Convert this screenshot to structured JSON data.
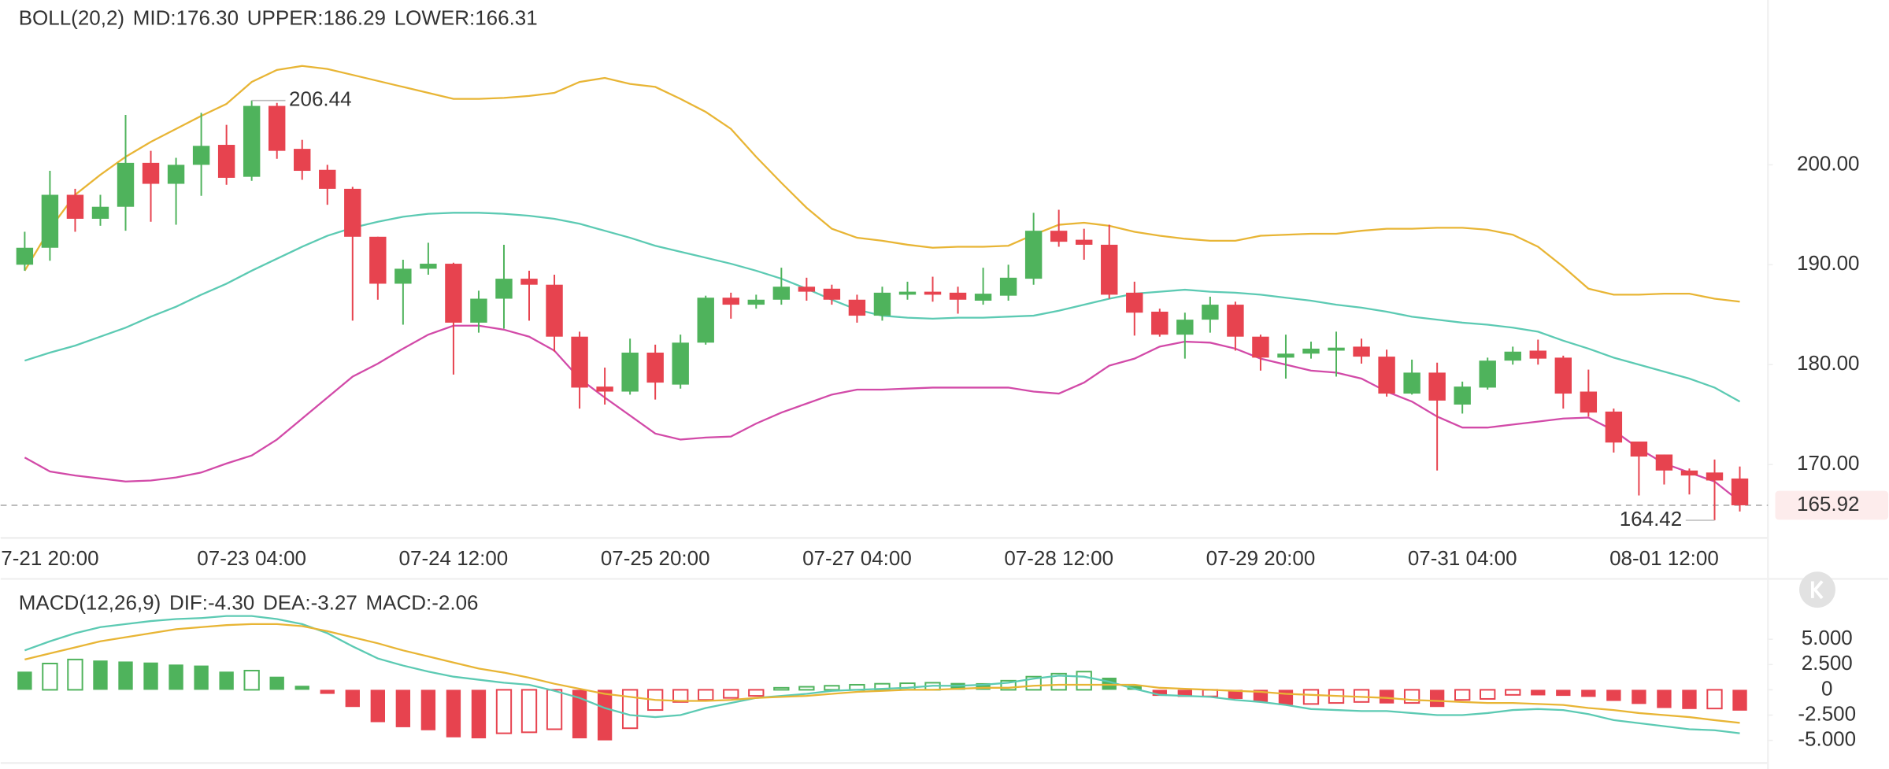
{
  "chart_data": [
    {
      "type": "candlestick",
      "legend_title": "BOLL(20,2)",
      "categories": [
        null,
        "7-21 20:00",
        null,
        null,
        null,
        null,
        null,
        null,
        null,
        "07-23 04:00",
        null,
        null,
        null,
        null,
        null,
        null,
        null,
        "07-24 12:00",
        null,
        null,
        null,
        null,
        null,
        null,
        null,
        "07-25 20:00",
        null,
        null,
        null,
        null,
        null,
        null,
        null,
        "07-27 04:00",
        null,
        null,
        null,
        null,
        null,
        null,
        null,
        "07-28 12:00",
        null,
        null,
        null,
        null,
        null,
        null,
        null,
        "07-29 20:00",
        null,
        null,
        null,
        null,
        null,
        null,
        null,
        "07-31 04:00",
        null,
        null,
        null,
        null,
        null,
        null,
        null,
        "08-01 12:00",
        null,
        null,
        null
      ],
      "open": [
        190.0,
        191.7,
        197.0,
        194.6,
        195.8,
        200.2,
        198.1,
        200.0,
        202.0,
        198.8,
        205.9,
        201.6,
        199.5,
        197.6,
        192.8,
        188.1,
        189.6,
        190.1,
        184.2,
        186.6,
        188.6,
        188.0,
        182.8,
        177.8,
        177.3,
        181.2,
        178.0,
        182.2,
        186.7,
        186.0,
        186.5,
        187.8,
        187.6,
        186.5,
        184.9,
        187.0,
        187.3,
        187.2,
        186.4,
        186.9,
        188.6,
        193.4,
        192.5,
        192.0,
        187.2,
        185.3,
        183.0,
        184.5,
        186.0,
        182.8,
        180.7,
        181.1,
        181.4,
        181.8,
        180.8,
        177.1,
        179.2,
        176.0,
        177.7,
        180.4,
        181.4,
        180.7,
        177.3,
        175.3,
        172.3,
        171.0,
        169.4,
        169.2,
        168.6
      ],
      "high": [
        193.3,
        199.4,
        197.6,
        197.0,
        205.0,
        201.4,
        200.7,
        205.2,
        204.0,
        206.44,
        206.2,
        202.5,
        200.0,
        197.8,
        192.8,
        190.5,
        192.2,
        190.2,
        187.4,
        192.0,
        189.4,
        189.0,
        183.3,
        179.7,
        182.6,
        182.0,
        183.0,
        186.9,
        187.2,
        187.0,
        189.7,
        188.7,
        188.0,
        187.0,
        187.8,
        188.3,
        188.8,
        187.8,
        189.7,
        190.0,
        195.2,
        195.5,
        193.6,
        194.0,
        188.3,
        185.6,
        185.2,
        186.8,
        186.3,
        183.0,
        183.0,
        182.3,
        183.3,
        182.6,
        181.5,
        180.5,
        180.2,
        178.3,
        180.7,
        181.8,
        182.5,
        180.9,
        179.5,
        175.6,
        172.3,
        171.0,
        169.6,
        170.5,
        169.8
      ],
      "low": [
        189.4,
        190.4,
        193.3,
        193.9,
        193.4,
        194.3,
        194.0,
        196.9,
        198.0,
        198.4,
        200.6,
        198.5,
        196.0,
        184.4,
        186.5,
        184.0,
        189.0,
        179.0,
        183.2,
        183.6,
        184.4,
        181.3,
        175.6,
        176.0,
        177.0,
        176.5,
        177.6,
        182.0,
        184.6,
        185.6,
        186.0,
        186.4,
        186.0,
        184.2,
        184.4,
        186.5,
        186.3,
        185.1,
        186.0,
        186.4,
        188.0,
        191.8,
        190.5,
        186.6,
        182.9,
        182.8,
        180.6,
        183.2,
        181.4,
        179.4,
        178.6,
        180.6,
        178.8,
        180.1,
        176.8,
        177.0,
        169.4,
        175.1,
        177.5,
        180.0,
        180.0,
        175.6,
        174.8,
        171.2,
        166.9,
        168.0,
        167.0,
        164.42,
        165.3
      ],
      "close": [
        191.7,
        197.0,
        194.6,
        195.8,
        200.2,
        198.1,
        200.0,
        201.9,
        198.7,
        205.9,
        201.4,
        199.4,
        197.6,
        192.8,
        188.1,
        189.6,
        190.1,
        184.2,
        186.6,
        188.6,
        188.0,
        182.8,
        177.7,
        177.3,
        181.2,
        178.2,
        182.2,
        186.7,
        186.0,
        186.5,
        187.8,
        187.3,
        186.5,
        184.9,
        187.2,
        187.3,
        187.0,
        186.5,
        187.1,
        188.7,
        193.4,
        192.3,
        192.0,
        187.0,
        185.2,
        183.0,
        184.5,
        186.0,
        182.8,
        180.7,
        181.1,
        181.6,
        181.7,
        180.8,
        177.1,
        179.2,
        176.4,
        177.8,
        180.4,
        181.3,
        180.6,
        177.1,
        175.2,
        172.2,
        170.8,
        169.4,
        168.9,
        168.4,
        165.92
      ],
      "up_color": "#4fb35c",
      "down_color": "#e7434f",
      "series": [
        {
          "name": "MID:176.30",
          "color": "#5ccab3",
          "values": [
            180.4,
            181.2,
            181.9,
            182.8,
            183.7,
            184.8,
            185.8,
            187.0,
            188.1,
            189.4,
            190.6,
            191.8,
            192.9,
            193.7,
            194.3,
            194.8,
            195.1,
            195.2,
            195.2,
            195.1,
            194.9,
            194.6,
            194.1,
            193.4,
            192.7,
            191.9,
            191.3,
            190.7,
            190.1,
            189.4,
            188.6,
            187.6,
            186.5,
            185.5,
            184.9,
            184.7,
            184.6,
            184.7,
            184.7,
            184.8,
            184.9,
            185.4,
            186.0,
            186.6,
            187.1,
            187.3,
            187.5,
            187.3,
            187.2,
            187.0,
            186.7,
            186.4,
            186.0,
            185.7,
            185.3,
            184.8,
            184.5,
            184.2,
            184.0,
            183.7,
            183.3,
            182.4,
            181.6,
            180.7,
            180.0,
            179.3,
            178.6,
            177.7,
            176.3
          ]
        },
        {
          "name": "UPPER:186.29",
          "color": "#e8b535",
          "values": [
            189.4,
            193.6,
            197.0,
            199.0,
            200.8,
            202.3,
            203.6,
            204.9,
            206.1,
            208.3,
            209.5,
            209.9,
            209.6,
            209.0,
            208.4,
            207.8,
            207.2,
            206.6,
            206.6,
            206.7,
            206.9,
            207.2,
            208.3,
            208.7,
            208.1,
            207.8,
            206.6,
            205.3,
            203.6,
            200.8,
            198.2,
            195.7,
            193.6,
            192.7,
            192.4,
            192.0,
            191.7,
            191.8,
            191.8,
            191.9,
            193.0,
            194.0,
            194.2,
            193.9,
            193.3,
            192.9,
            192.6,
            192.4,
            192.4,
            192.9,
            193.0,
            193.1,
            193.1,
            193.4,
            193.6,
            193.6,
            193.7,
            193.7,
            193.5,
            193.0,
            191.8,
            189.8,
            187.6,
            187.0,
            187.0,
            187.1,
            187.1,
            186.6,
            186.3
          ]
        },
        {
          "name": "LOWER:166.31",
          "color": "#d24aa8",
          "values": [
            170.7,
            169.3,
            168.9,
            168.6,
            168.3,
            168.4,
            168.7,
            169.2,
            170.1,
            170.9,
            172.5,
            174.6,
            176.7,
            178.8,
            180.1,
            181.6,
            183.0,
            183.9,
            183.9,
            183.5,
            182.8,
            181.4,
            178.6,
            176.7,
            174.9,
            173.1,
            172.5,
            172.7,
            172.8,
            174.1,
            175.2,
            176.1,
            177.0,
            177.5,
            177.5,
            177.6,
            177.7,
            177.7,
            177.7,
            177.7,
            177.3,
            177.1,
            178.2,
            179.9,
            180.6,
            181.8,
            182.3,
            182.2,
            181.6,
            180.6,
            180.0,
            179.4,
            179.2,
            178.6,
            177.3,
            176.3,
            174.8,
            173.7,
            173.7,
            174.0,
            174.3,
            174.6,
            174.7,
            173.4,
            171.6,
            170.1,
            169.2,
            168.3,
            166.3
          ]
        }
      ],
      "ylim": [
        162.65,
        216.5
      ],
      "yticks": [
        {
          "value": 170,
          "label": "170.00"
        },
        {
          "value": 180,
          "label": "180.00"
        },
        {
          "value": 190,
          "label": "190.00"
        },
        {
          "value": 200,
          "label": "200.00"
        }
      ],
      "last_price": 165.92,
      "high_label": 206.44,
      "low_label": 164.42
    },
    {
      "type": "macd",
      "legend_title": "MACD(12,26,9)",
      "histogram": {
        "name": "MACD:-2.06",
        "up_color": "#4fb35c",
        "down_color": "#e7434f",
        "values": [
          1.8,
          2.6,
          3.0,
          2.9,
          2.8,
          2.7,
          2.5,
          2.4,
          1.8,
          1.9,
          1.3,
          0.4,
          -0.4,
          -1.7,
          -3.2,
          -3.7,
          -4.0,
          -4.7,
          -4.8,
          -4.3,
          -4.2,
          -3.9,
          -4.8,
          -5.0,
          -3.8,
          -2.0,
          -1.2,
          -1.0,
          -0.8,
          -0.6,
          0.2,
          0.3,
          0.4,
          0.5,
          0.6,
          0.65,
          0.7,
          0.68,
          0.66,
          0.9,
          1.3,
          1.6,
          1.8,
          1.2,
          0.4,
          -0.6,
          -0.7,
          -0.65,
          -0.9,
          -1.2,
          -1.5,
          -1.4,
          -1.3,
          -1.2,
          -1.35,
          -1.3,
          -1.7,
          -1.0,
          -0.9,
          -0.5,
          -0.55,
          -0.6,
          -0.7,
          -1.1,
          -1.4,
          -1.8,
          -1.9,
          -1.85,
          -2.06
        ]
      },
      "series": [
        {
          "name": "DIF:-4.30",
          "color": "#5ccab3",
          "values": [
            3.9,
            4.8,
            5.6,
            6.2,
            6.5,
            6.8,
            7.0,
            7.1,
            7.3,
            7.3,
            7.0,
            6.5,
            5.6,
            4.3,
            3.1,
            2.4,
            1.8,
            1.3,
            1.0,
            0.7,
            0.5,
            -0.1,
            -0.8,
            -1.8,
            -2.5,
            -2.7,
            -2.5,
            -1.8,
            -1.3,
            -0.8,
            -0.6,
            -0.4,
            -0.1,
            0.0,
            0.1,
            0.2,
            0.4,
            0.4,
            0.5,
            0.7,
            1.1,
            1.4,
            1.3,
            0.8,
            0.1,
            -0.5,
            -0.6,
            -0.7,
            -1.0,
            -1.2,
            -1.5,
            -1.9,
            -2.0,
            -2.1,
            -2.1,
            -2.3,
            -2.5,
            -2.5,
            -2.3,
            -2.0,
            -1.9,
            -2.0,
            -2.4,
            -3.0,
            -3.3,
            -3.6,
            -3.9,
            -4.0,
            -4.3
          ]
        },
        {
          "name": "DEA:-3.27",
          "color": "#e8b535",
          "values": [
            3.0,
            3.6,
            4.2,
            4.8,
            5.2,
            5.6,
            6.0,
            6.2,
            6.4,
            6.5,
            6.5,
            6.3,
            5.8,
            5.2,
            4.6,
            3.9,
            3.3,
            2.7,
            2.1,
            1.7,
            1.2,
            0.6,
            0.1,
            -0.4,
            -0.7,
            -1.0,
            -1.1,
            -1.1,
            -1.0,
            -0.8,
            -0.7,
            -0.6,
            -0.4,
            -0.2,
            -0.1,
            0.0,
            0.0,
            0.1,
            0.2,
            0.2,
            0.4,
            0.5,
            0.5,
            0.5,
            0.5,
            0.2,
            0.1,
            0.0,
            -0.1,
            -0.2,
            -0.4,
            -0.5,
            -0.6,
            -0.7,
            -0.8,
            -1.0,
            -1.1,
            -1.2,
            -1.3,
            -1.3,
            -1.4,
            -1.5,
            -1.8,
            -2.0,
            -2.3,
            -2.5,
            -2.7,
            -3.0,
            -3.27
          ]
        }
      ],
      "ylim": [
        -7,
        10.5
      ],
      "yticks": [
        {
          "value": -5,
          "label": "-5.000"
        },
        {
          "value": -2.5,
          "label": "-2.500"
        },
        0,
        {
          "value": 2.5,
          "label": "2.500"
        },
        {
          "value": 5,
          "label": "5.000"
        }
      ]
    }
  ]
}
